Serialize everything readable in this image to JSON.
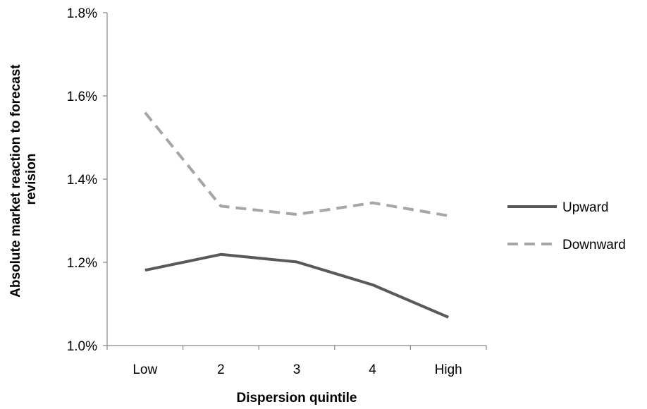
{
  "chart_data": {
    "type": "line",
    "categories": [
      "Low",
      "2",
      "3",
      "4",
      "High"
    ],
    "ylim": [
      0.01,
      0.018
    ],
    "yticks": [
      {
        "value": 0.01,
        "label": "1.0%"
      },
      {
        "value": 0.012,
        "label": "1.2%"
      },
      {
        "value": 0.014,
        "label": "1.4%"
      },
      {
        "value": 0.016,
        "label": "1.6%"
      },
      {
        "value": 0.018,
        "label": "1.8%"
      }
    ],
    "xlabel": "Dispersion quintile",
    "ylabel": "Absolute market reaction to forecast revision",
    "ylabel_lines": [
      "Absolute market reaction to forecast",
      "revision"
    ],
    "grid": false,
    "legend_position": "right",
    "series": [
      {
        "name": "Upward",
        "values": [
          0.01181,
          0.01219,
          0.01201,
          0.01146,
          0.01068
        ],
        "color": "#595959",
        "style": "solid"
      },
      {
        "name": "Downward",
        "values": [
          0.0156,
          0.01335,
          0.01315,
          0.01343,
          0.01312
        ],
        "color": "#a6a6a6",
        "style": "dashed"
      }
    ]
  }
}
